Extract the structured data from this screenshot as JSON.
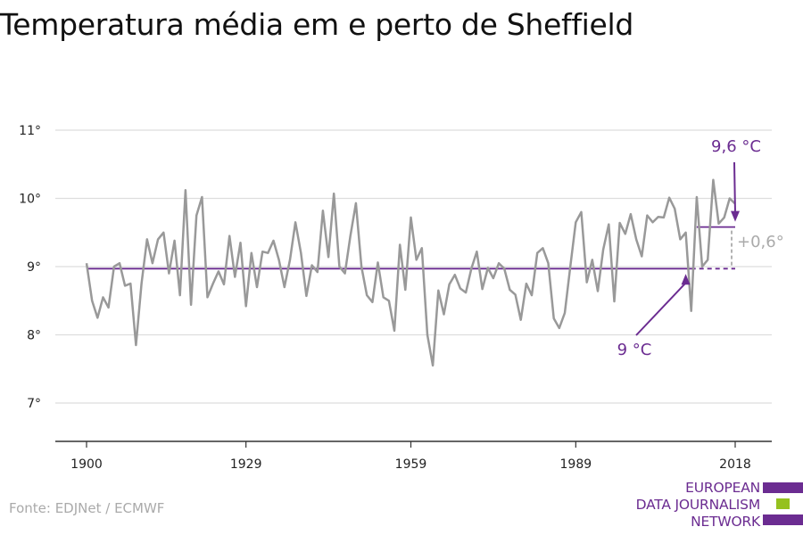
{
  "title": "Temperatura média em e perto de Sheffield",
  "source": "Fonte: EDJNet / ECMWF",
  "logo": {
    "line1": "EUROPEAN",
    "line2": "DATA JOURNALISM",
    "line3": "NETWORK"
  },
  "colors": {
    "series": "#999999",
    "accent": "#6b2c91",
    "diff": "#aaaaaa",
    "grid": "#dddddd",
    "logo_green": "#95c11f"
  },
  "chart_data": {
    "type": "line",
    "title": "Temperatura média em e perto de Sheffield",
    "xlabel": "",
    "ylabel": "",
    "grid": true,
    "xlim": [
      1900,
      2019
    ],
    "ylim": [
      6.5,
      11.2
    ],
    "x_ticks": [
      1900,
      1929,
      1959,
      1989,
      2018
    ],
    "x_tick_labels": [
      "1900",
      "1929",
      "1959",
      "1989",
      "2018"
    ],
    "y_ticks": [
      7,
      8,
      9,
      10,
      11
    ],
    "y_tick_labels": [
      "7°",
      "8°",
      "9°",
      "10°",
      "11°"
    ],
    "series": [
      {
        "x": [
          1900,
          1901,
          1902,
          1903,
          1904,
          1905,
          1906,
          1907,
          1908,
          1909,
          1910,
          1911,
          1912,
          1913,
          1914,
          1915,
          1916,
          1917,
          1918,
          1919,
          1920,
          1921,
          1922,
          1923,
          1924,
          1925,
          1926,
          1927,
          1928,
          1929,
          1930,
          1931,
          1932,
          1933,
          1934,
          1935,
          1936,
          1937,
          1938,
          1939,
          1940,
          1941,
          1942,
          1943,
          1944,
          1945,
          1946,
          1947,
          1948,
          1949,
          1950,
          1951,
          1952,
          1953,
          1954,
          1955,
          1956,
          1957,
          1958,
          1959,
          1960,
          1961,
          1962,
          1963,
          1964,
          1965,
          1966,
          1967,
          1968,
          1969,
          1970,
          1971,
          1972,
          1973,
          1974,
          1975,
          1976,
          1977,
          1978,
          1979,
          1980,
          1981,
          1982,
          1983,
          1984,
          1985,
          1986,
          1987,
          1988,
          1989,
          1990,
          1991,
          1992,
          1993,
          1994,
          1995,
          1996,
          1997,
          1998,
          1999,
          2000,
          2001,
          2002,
          2003,
          2004,
          2005,
          2006,
          2007,
          2008,
          2009,
          2010,
          2011,
          2012,
          2013,
          2014,
          2015,
          2016,
          2017,
          2018,
          2019
        ],
        "values": [
          9.05,
          8.5,
          8.25,
          8.55,
          8.4,
          9.0,
          9.05,
          8.72,
          8.75,
          7.85,
          8.75,
          9.4,
          9.05,
          9.4,
          9.5,
          8.9,
          9.38,
          8.58,
          10.12,
          8.44,
          9.75,
          10.02,
          8.55,
          8.75,
          8.93,
          8.74,
          9.45,
          8.85,
          9.35,
          8.42,
          9.2,
          8.7,
          9.22,
          9.2,
          9.38,
          9.1,
          8.7,
          9.1,
          9.65,
          9.2,
          8.57,
          9.02,
          8.92,
          9.82,
          9.14,
          10.07,
          9.0,
          8.9,
          9.45,
          9.93,
          9.0,
          8.58,
          8.48,
          9.06,
          8.55,
          8.5,
          8.06,
          9.32,
          8.66,
          9.72,
          9.1,
          9.27,
          8.0,
          7.55,
          8.65,
          8.3,
          8.74,
          8.88,
          8.68,
          8.62,
          8.97,
          9.22,
          8.67,
          8.98,
          8.83,
          9.05,
          8.97,
          8.66,
          8.59,
          8.22,
          8.75,
          8.58,
          9.2,
          9.27,
          9.05,
          8.24,
          8.1,
          8.32,
          9.0,
          9.65,
          9.8,
          8.77,
          9.1,
          8.64,
          9.25,
          9.62,
          8.49,
          9.64,
          9.48,
          9.77,
          9.4,
          9.15,
          9.75,
          9.65,
          9.73,
          9.72,
          10.01,
          9.85,
          9.4,
          9.5,
          8.35,
          10.02,
          9.0,
          9.1,
          10.27,
          9.63,
          9.72,
          10.0,
          9.92,
          null
        ]
      }
    ],
    "reference_lines": [
      {
        "label": "9 °C",
        "value": 8.97,
        "x_start": 1900,
        "x_end": 2010
      },
      {
        "label": "9,6 °C",
        "value": 9.58,
        "x_start": 2011,
        "x_end": 2018
      }
    ],
    "difference_label": "+0,6°"
  }
}
